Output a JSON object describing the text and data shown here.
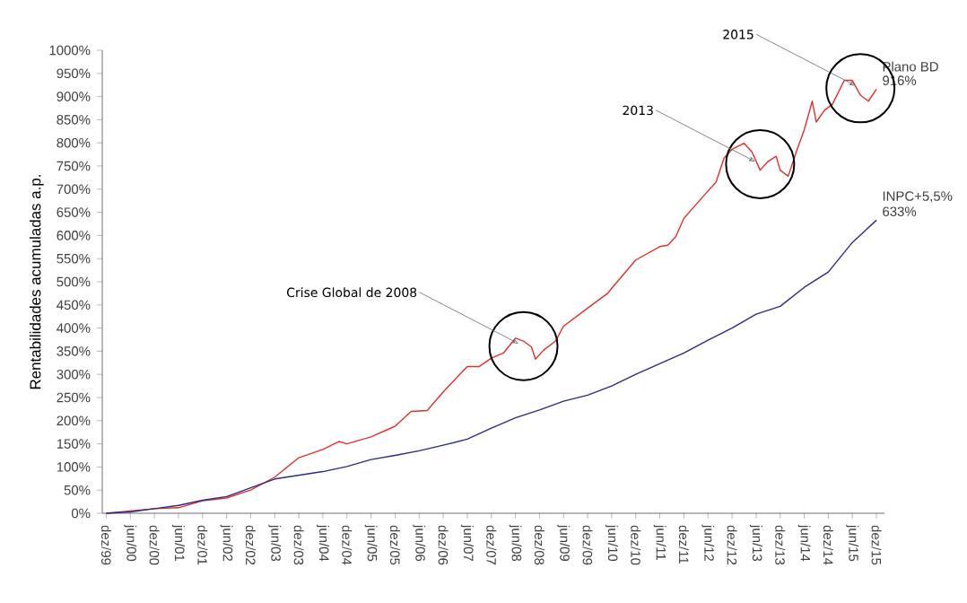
{
  "chart_data": {
    "type": "line",
    "ylabel": "Rentabilidades acumuladas a.p.",
    "xlim": [
      "1999-11",
      "2016-02"
    ],
    "xticks": [
      {
        "value": "1999-12",
        "label": "dez/99"
      },
      {
        "value": "2000-06",
        "label": "jun/00"
      },
      {
        "value": "2000-12",
        "label": "dez/00"
      },
      {
        "value": "2001-06",
        "label": "jun/01"
      },
      {
        "value": "2001-12",
        "label": "dez/01"
      },
      {
        "value": "2002-06",
        "label": "jun/02"
      },
      {
        "value": "2002-12",
        "label": "dez/02"
      },
      {
        "value": "2003-06",
        "label": "jun/03"
      },
      {
        "value": "2003-12",
        "label": "dez/03"
      },
      {
        "value": "2004-06",
        "label": "jun/04"
      },
      {
        "value": "2004-12",
        "label": "dez/04"
      },
      {
        "value": "2005-06",
        "label": "jun/05"
      },
      {
        "value": "2005-12",
        "label": "dez/05"
      },
      {
        "value": "2006-06",
        "label": "jun/06"
      },
      {
        "value": "2006-12",
        "label": "dez/06"
      },
      {
        "value": "2007-06",
        "label": "jun/07"
      },
      {
        "value": "2007-12",
        "label": "dez/07"
      },
      {
        "value": "2008-06",
        "label": "jun/08"
      },
      {
        "value": "2008-12",
        "label": "dez/08"
      },
      {
        "value": "2009-06",
        "label": "jun/09"
      },
      {
        "value": "2009-12",
        "label": "dez/09"
      },
      {
        "value": "2010-06",
        "label": "jun/10"
      },
      {
        "value": "2010-12",
        "label": "dez/10"
      },
      {
        "value": "2011-06",
        "label": "jun/11"
      },
      {
        "value": "2011-12",
        "label": "dez/11"
      },
      {
        "value": "2012-06",
        "label": "jun/12"
      },
      {
        "value": "2012-12",
        "label": "dez/12"
      },
      {
        "value": "2013-06",
        "label": "jun/13"
      },
      {
        "value": "2013-12",
        "label": "dez/13"
      },
      {
        "value": "2014-06",
        "label": "jun/14"
      },
      {
        "value": "2014-12",
        "label": "dez/14"
      },
      {
        "value": "2015-06",
        "label": "jun/15"
      },
      {
        "value": "2015-12",
        "label": "dez/15"
      }
    ],
    "ylim": [
      0,
      1000
    ],
    "yticks": [
      {
        "value": 0,
        "label": "0%"
      },
      {
        "value": 50,
        "label": "50%"
      },
      {
        "value": 100,
        "label": "100%"
      },
      {
        "value": 150,
        "label": "150%"
      },
      {
        "value": 200,
        "label": "200%"
      },
      {
        "value": 250,
        "label": "250%"
      },
      {
        "value": 300,
        "label": "300%"
      },
      {
        "value": 350,
        "label": "350%"
      },
      {
        "value": 400,
        "label": "400%"
      },
      {
        "value": 450,
        "label": "450%"
      },
      {
        "value": 500,
        "label": "500%"
      },
      {
        "value": 550,
        "label": "550%"
      },
      {
        "value": 600,
        "label": "600%"
      },
      {
        "value": 650,
        "label": "650%"
      },
      {
        "value": 700,
        "label": "700%"
      },
      {
        "value": 750,
        "label": "750%"
      },
      {
        "value": 800,
        "label": "800%"
      },
      {
        "value": 850,
        "label": "850%"
      },
      {
        "value": 900,
        "label": "900%"
      },
      {
        "value": 950,
        "label": "950%"
      },
      {
        "value": 1000,
        "label": "1000%"
      }
    ],
    "grid": false,
    "marker": "none",
    "line_style": "solid",
    "annotations": [
      {
        "text": "Crise Global de 2008",
        "x": "2008-08",
        "y": 361
      },
      {
        "text": "2013",
        "x": "2013-07",
        "y": 754
      },
      {
        "text": "2015",
        "x": "2015-08",
        "y": 918
      }
    ],
    "series": [
      {
        "name": "Plano BD",
        "color": "#e0302a",
        "x": [
          "1999-12",
          "2000-06",
          "2000-12",
          "2001-06",
          "2001-12",
          "2002-06",
          "2002-12",
          "2003-06",
          "2003-12",
          "2004-06",
          "2004-10",
          "2004-12",
          "2005-06",
          "2005-12",
          "2006-04",
          "2006-08",
          "2006-12",
          "2007-06",
          "2007-09",
          "2007-12",
          "2008-03",
          "2008-06",
          "2008-08",
          "2008-10",
          "2008-11",
          "2009-01",
          "2009-04",
          "2009-06",
          "2009-12",
          "2010-05",
          "2010-06",
          "2010-12",
          "2011-06",
          "2011-08",
          "2011-10",
          "2011-12",
          "2012-06",
          "2012-08",
          "2012-10",
          "2012-12",
          "2013-03",
          "2013-05",
          "2013-07",
          "2013-09",
          "2013-11",
          "2013-12",
          "2014-02",
          "2014-04",
          "2014-06",
          "2014-08",
          "2014-09",
          "2014-11",
          "2015-01",
          "2015-04",
          "2015-06",
          "2015-08",
          "2015-10",
          "2015-12"
        ],
        "values": [
          0,
          5,
          10,
          12,
          27,
          33,
          50,
          78,
          120,
          138,
          155,
          150,
          165,
          188,
          220,
          222,
          262,
          317,
          317,
          335,
          346,
          378,
          372,
          359,
          333,
          352,
          372,
          404,
          443,
          475,
          486,
          547,
          576,
          579,
          598,
          637,
          696,
          715,
          767,
          786,
          799,
          780,
          741,
          760,
          771,
          741,
          728,
          780,
          828,
          890,
          845,
          870,
          883,
          935,
          935,
          903,
          890,
          916
        ],
        "value_labels": [
          null,
          null,
          null,
          null,
          null,
          null,
          null,
          null,
          null,
          null,
          null,
          null,
          null,
          null,
          null,
          null,
          null,
          null,
          null,
          null,
          null,
          null,
          null,
          null,
          null,
          null,
          null,
          null,
          null,
          null,
          null,
          null,
          null,
          null,
          null,
          null,
          null,
          null,
          null,
          null,
          null,
          null,
          null,
          null,
          null,
          null,
          null,
          null,
          null,
          null,
          null,
          null,
          null,
          null,
          null,
          null,
          null,
          "916%"
        ]
      },
      {
        "name": "INPC+5,5%",
        "color": "#2b2a8a",
        "x": [
          "1999-12",
          "2000-06",
          "2000-12",
          "2001-06",
          "2001-12",
          "2002-06",
          "2002-12",
          "2003-06",
          "2003-12",
          "2004-06",
          "2004-12",
          "2005-06",
          "2005-12",
          "2006-06",
          "2006-12",
          "2007-06",
          "2007-12",
          "2008-06",
          "2008-12",
          "2009-06",
          "2009-12",
          "2010-06",
          "2010-12",
          "2011-06",
          "2011-12",
          "2012-06",
          "2012-12",
          "2013-06",
          "2013-12",
          "2014-06",
          "2014-12",
          "2015-06",
          "2015-12"
        ],
        "values": [
          0,
          3,
          10,
          17,
          28,
          36,
          55,
          74,
          82,
          90,
          101,
          116,
          125,
          135,
          147,
          160,
          184,
          206,
          223,
          242,
          255,
          275,
          300,
          323,
          346,
          374,
          400,
          430,
          447,
          488,
          521,
          585,
          633
        ],
        "value_labels": [
          null,
          null,
          null,
          null,
          null,
          null,
          null,
          null,
          null,
          null,
          null,
          null,
          null,
          null,
          null,
          null,
          null,
          null,
          null,
          null,
          null,
          null,
          null,
          null,
          null,
          null,
          null,
          null,
          null,
          null,
          null,
          null,
          "633%"
        ]
      }
    ]
  }
}
